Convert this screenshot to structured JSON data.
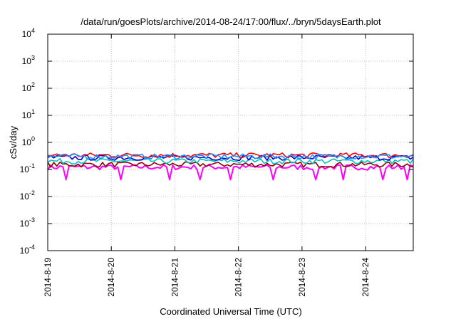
{
  "chart_data": {
    "type": "line",
    "title": "/data/run/goesPlots/archive/2014-08-24/17:00/flux/../bryn/5daysEarth.plot",
    "xlabel": "Coordinated Universal Time (UTC)",
    "ylabel": "cSv/day",
    "xlim": [
      "2014-08-19",
      "2014-08-24T18:00"
    ],
    "ylim": [
      0.0001,
      10000
    ],
    "y_scale": "log",
    "grid": true,
    "x_ticks": [
      "2014-8-19",
      "2014-8-20",
      "2014-8-21",
      "2014-8-22",
      "2014-8-23",
      "2014-8-24"
    ],
    "y_ticks": [
      {
        "base": "10",
        "exp": "-4",
        "value": 0.0001
      },
      {
        "base": "10",
        "exp": "-3",
        "value": 0.001
      },
      {
        "base": "10",
        "exp": "-2",
        "value": 0.01
      },
      {
        "base": "10",
        "exp": "-1",
        "value": 0.1
      },
      {
        "base": "10",
        "exp": "0",
        "value": 1
      },
      {
        "base": "10",
        "exp": "1",
        "value": 10
      },
      {
        "base": "10",
        "exp": "2",
        "value": 100
      },
      {
        "base": "10",
        "exp": "3",
        "value": 1000
      },
      {
        "base": "10",
        "exp": "4",
        "value": 10000
      }
    ],
    "series": [
      {
        "color": "#ff00ff",
        "level": 0.12,
        "dips": [
          0.05,
          0.2,
          0.33,
          0.42,
          0.5,
          0.62,
          0.73,
          0.81,
          0.92,
          0.98
        ]
      },
      {
        "color": "#8b0000",
        "level": 0.15,
        "dips": []
      },
      {
        "color": "#00c0c0",
        "level": 0.2,
        "dips": []
      },
      {
        "color": "#0000cc",
        "level": 0.27,
        "dips": []
      },
      {
        "color": "#ff0000",
        "level": 0.33,
        "dips": []
      },
      {
        "color": "#1e90ff",
        "level": 0.3,
        "dips": []
      }
    ],
    "n_points": 120
  }
}
